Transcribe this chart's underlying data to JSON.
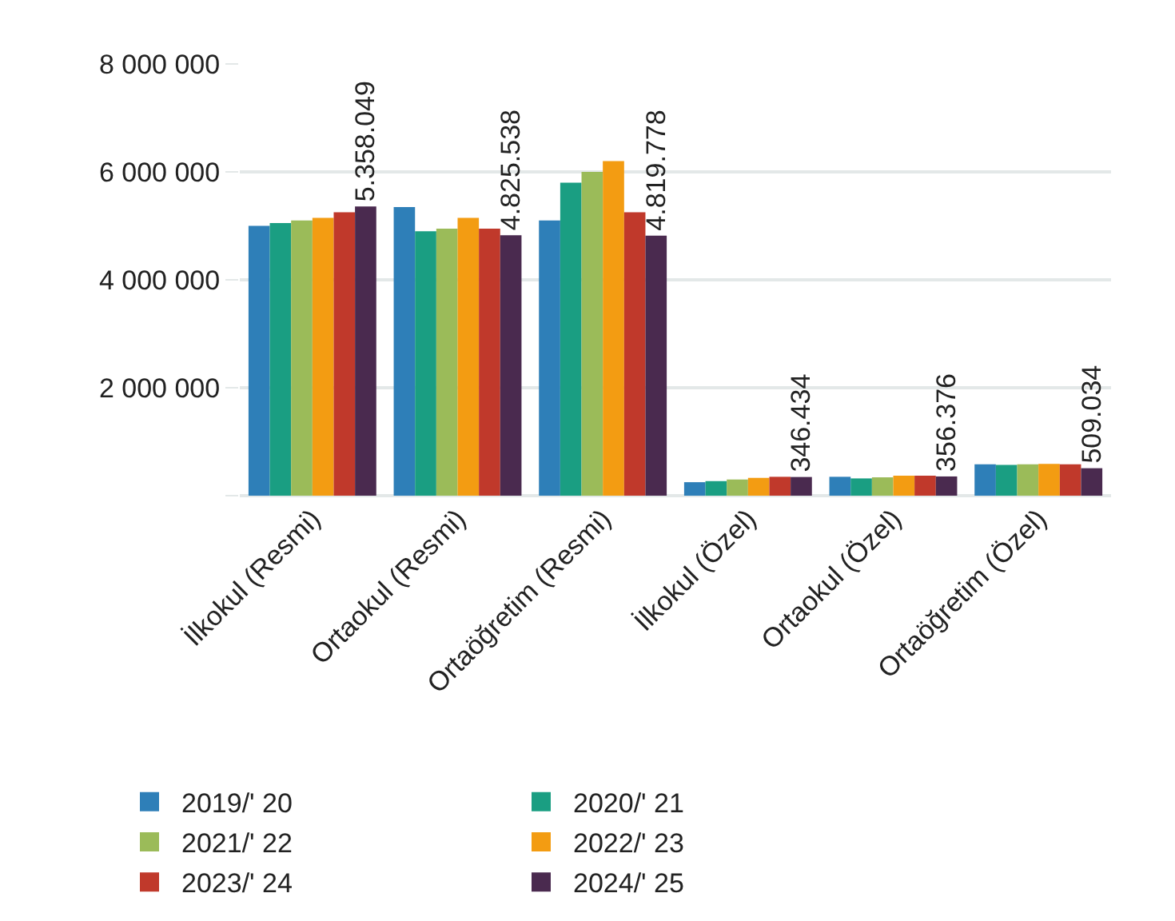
{
  "chart_data": {
    "type": "bar",
    "categories": [
      "İlkokul (Resmi)",
      "Ortaokul (Resmi)",
      "Ortaöğretim (Resmi)",
      "İlkokul (Özel)",
      "Ortaokul (Özel)",
      "Ortaöğretim (Özel)"
    ],
    "series": [
      {
        "name": "2019/' 20",
        "color": "#2e7fb8",
        "values": [
          5000000,
          5350000,
          5100000,
          250000,
          350000,
          580000
        ]
      },
      {
        "name": "2020/' 21",
        "color": "#1a9e82",
        "values": [
          5050000,
          4900000,
          5800000,
          270000,
          320000,
          570000
        ]
      },
      {
        "name": "2021/' 22",
        "color": "#9bbb59",
        "values": [
          5100000,
          4950000,
          6000000,
          300000,
          340000,
          580000
        ]
      },
      {
        "name": "2022/' 23",
        "color": "#f39c12",
        "values": [
          5150000,
          5150000,
          6200000,
          330000,
          370000,
          590000
        ]
      },
      {
        "name": "2023/' 24",
        "color": "#c0392b",
        "values": [
          5250000,
          4950000,
          5250000,
          350000,
          370000,
          580000
        ]
      },
      {
        "name": "2024/' 25",
        "color": "#4a2a4f",
        "values": [
          5358049,
          4825538,
          4819778,
          346434,
          356376,
          509034
        ],
        "value_labels": [
          "5.358.049",
          "4.825.538",
          "4.819.778",
          "346.434",
          "356.376",
          "509.034"
        ]
      }
    ],
    "ylim": [
      0,
      8000000
    ],
    "yticks": [
      {
        "value": 0,
        "label": null
      },
      {
        "value": 2000000,
        "label": "2 000 000"
      },
      {
        "value": 4000000,
        "label": "4 000 000"
      },
      {
        "value": 6000000,
        "label": "6 000 000"
      },
      {
        "value": 8000000,
        "label": "8 000 000"
      }
    ],
    "grid": "y",
    "legend": "bottom"
  }
}
